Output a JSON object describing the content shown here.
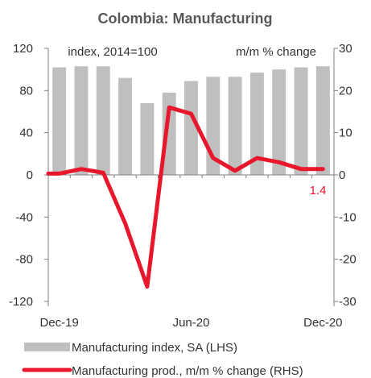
{
  "chart_data": {
    "type": "bar+line",
    "title": "Colombia: Manufacturing",
    "left_axis_label": "index, 2014=100",
    "right_axis_label": "m/m % change",
    "left_ylim": [
      -120,
      120
    ],
    "left_ticks": [
      "120",
      "80",
      "40",
      "0",
      "-40",
      "-80",
      "-120"
    ],
    "left_tick_values": [
      120,
      80,
      40,
      0,
      -40,
      -80,
      -120
    ],
    "right_ylim": [
      -30,
      30
    ],
    "right_ticks": [
      "30",
      "20",
      "10",
      "0",
      "-10",
      "-20",
      "-30"
    ],
    "right_tick_values": [
      30,
      20,
      10,
      0,
      -10,
      -20,
      -30
    ],
    "x_tick_labels": [
      "Dec-19",
      "Jun-20",
      "Dec-20"
    ],
    "x_tick_positions": [
      0,
      6,
      12
    ],
    "bar_series": {
      "name": "Manufacturing index, SA (LHS)",
      "color": "#bfbfbf",
      "values": [
        102,
        103,
        103,
        92,
        68,
        78,
        89,
        93,
        93,
        97,
        100,
        102,
        103
      ]
    },
    "line_series": {
      "name": "Manufacturing prod., m/m % change (RHS)",
      "color": "#e8172b",
      "values": [
        0.3,
        1.4,
        0.5,
        -11.5,
        -26.5,
        16,
        14.5,
        4,
        1,
        4,
        3,
        1.4,
        1.4
      ]
    },
    "annotation": {
      "text": "1.4",
      "color": "#e8172b"
    },
    "grid": false,
    "legend_placement": "bottom"
  }
}
